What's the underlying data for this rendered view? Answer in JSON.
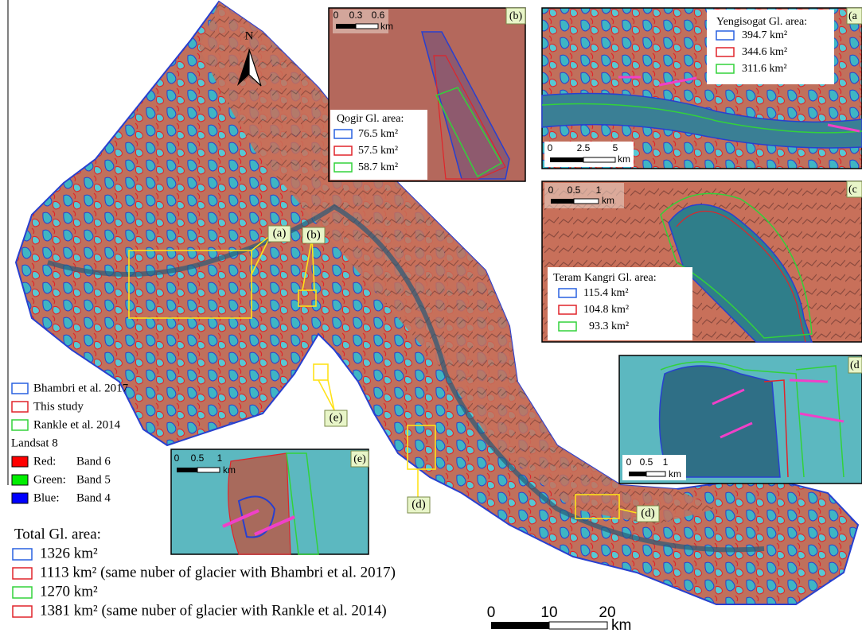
{
  "north_label": "N",
  "callouts": [
    "(a)",
    "(b)",
    "(e)",
    "(d)",
    "(d)"
  ],
  "insets": [
    {
      "label": "(b)",
      "scale_ticks": [
        0,
        0.3,
        0.6
      ],
      "scale_unit": "km",
      "legend_title": "Qogir Gl. area:",
      "areas": [
        "76.5 km²",
        "57.5 km²",
        "58.7 km²"
      ]
    },
    {
      "label": "(a",
      "scale_ticks": [
        0,
        2.5,
        5
      ],
      "scale_unit": "km",
      "legend_title": "Yengisogat Gl. area:",
      "areas": [
        "394.7 km²",
        "344.6 km²",
        "311.6 km²"
      ]
    },
    {
      "label": "(c",
      "scale_ticks": [
        0,
        0.5,
        1
      ],
      "scale_unit": "km",
      "legend_title": "Teram Kangri Gl. area:",
      "areas": [
        "115.4 km²",
        "104.8 km²",
        "93.3 km²"
      ]
    },
    {
      "label": "(d",
      "scale_ticks": [
        0,
        0.5,
        1
      ],
      "scale_unit": "km"
    },
    {
      "label": "(e)",
      "scale_ticks": [
        0,
        0.5,
        1
      ],
      "scale_unit": "km"
    }
  ],
  "legend": {
    "outlines": [
      "Bhambri et al. 2017",
      "This study",
      "Rankle et al. 2014"
    ],
    "sensor": "Landsat 8",
    "bands": [
      {
        "channel": "Red:",
        "band": "Band 6"
      },
      {
        "channel": "Green:",
        "band": "Band 5"
      },
      {
        "channel": "Blue:",
        "band": "Band 4"
      }
    ]
  },
  "total": {
    "title": "Total Gl. area:",
    "entries": [
      "1326 km²",
      "1113 km²  (same nuber of glacier with Bhambri et al. 2017)",
      "1270 km²",
      "1381 km² (same nuber of glacier with Rankle et al. 2014)"
    ]
  },
  "main_scale": {
    "ticks": [
      0,
      10,
      20
    ],
    "unit": "km"
  }
}
